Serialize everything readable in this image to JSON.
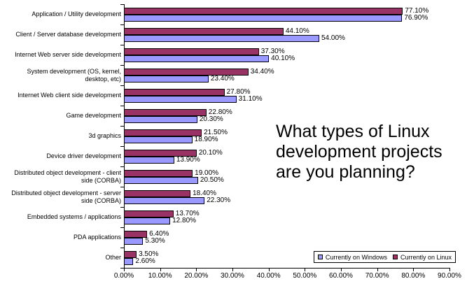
{
  "question": {
    "lines": [
      "What types of Linux",
      "development projects",
      "are you planning?"
    ]
  },
  "chart_data": {
    "type": "bar",
    "orientation": "horizontal",
    "title": "",
    "categories": [
      "Application / Utility development",
      "Client / Server database development",
      "Internet Web server side development",
      "System development (OS, kernel,\ndesktop, etc)",
      "Internet Web client side development",
      "Game development",
      "3d graphics",
      "Device driver development",
      "Distributed object development - client\nside (CORBA)",
      "Distributed object development - server\nside (CORBA)",
      "Embedded systems / applications",
      "PDA applications",
      "Other"
    ],
    "series": [
      {
        "name": "Currently on Windows",
        "color": "#9999FF",
        "values": [
          76.9,
          54.0,
          40.1,
          23.4,
          31.1,
          20.3,
          18.9,
          13.9,
          20.5,
          22.3,
          12.8,
          5.3,
          2.6
        ],
        "labels": [
          "76.90%",
          "54.00%",
          "40.10%",
          "23.40%",
          "31.10%",
          "20.30%",
          "18.90%",
          "13.90%",
          "20.50%",
          "22.30%",
          "12.80%",
          "5.30%",
          "2.60%"
        ]
      },
      {
        "name": "Currently on Linux",
        "color": "#993366",
        "values": [
          77.1,
          44.1,
          37.3,
          34.4,
          27.8,
          22.8,
          21.5,
          20.1,
          19.0,
          18.4,
          13.7,
          6.4,
          3.5
        ],
        "labels": [
          "77.10%",
          "44.10%",
          "37.30%",
          "34.40%",
          "27.80%",
          "22.80%",
          "21.50%",
          "20.10%",
          "19.00%",
          "18.40%",
          "13.70%",
          "6.40%",
          "3.50%"
        ]
      }
    ],
    "x_axis": {
      "min": 0,
      "max": 90,
      "tick_labels": [
        "0.00%",
        "10.00%",
        "20.00%",
        "30.00%",
        "40.00%",
        "50.00%",
        "60.00%",
        "70.00%",
        "80.00%",
        "90.00%"
      ]
    },
    "legend_position": "bottom-right",
    "grid": false,
    "value_labels": true
  }
}
